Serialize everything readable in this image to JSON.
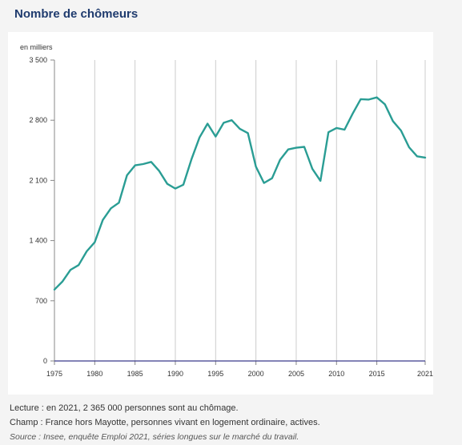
{
  "title": "Nombre de chômeurs",
  "notes": {
    "lecture": "Lecture : en 2021, 2 365 000 personnes sont au chômage.",
    "champ": "Champ : France hors Mayotte, personnes vivant en logement ordinaire, actives.",
    "source": "Source : Insee, enquête Emploi 2021, séries longues sur le marché du travail."
  },
  "colors": {
    "line": "#2a9d94",
    "grid": "#cccccc",
    "baseline": "#3a3a8c",
    "title": "#1f3b6e"
  },
  "chart_data": {
    "type": "line",
    "title": "",
    "xlabel": "",
    "ylabel": "en milliers",
    "xlim": [
      1975,
      2021
    ],
    "ylim": [
      0,
      3500
    ],
    "yticks": [
      0,
      700,
      1400,
      2100,
      2800,
      3500
    ],
    "ytick_labels": [
      "0",
      "700",
      "1 400",
      "2 100",
      "2 800",
      "3 500"
    ],
    "xticks": [
      1975,
      1980,
      1985,
      1990,
      1995,
      2000,
      2005,
      2010,
      2015,
      2021
    ],
    "xtick_labels": [
      "1975",
      "1980",
      "1985",
      "1990",
      "1995",
      "2000",
      "2005",
      "2010",
      "2015",
      "2021"
    ],
    "grid": "vertical",
    "x": [
      1975,
      1976,
      1977,
      1978,
      1979,
      1980,
      1981,
      1982,
      1983,
      1984,
      1985,
      1986,
      1987,
      1988,
      1989,
      1990,
      1991,
      1992,
      1993,
      1994,
      1995,
      1996,
      1997,
      1998,
      1999,
      2000,
      2001,
      2002,
      2003,
      2004,
      2005,
      2006,
      2007,
      2008,
      2009,
      2010,
      2011,
      2012,
      2013,
      2014,
      2015,
      2016,
      2017,
      2018,
      2019,
      2020,
      2021
    ],
    "series": [
      {
        "values": [
          830,
          925,
          1060,
          1115,
          1275,
          1380,
          1640,
          1775,
          1840,
          2160,
          2275,
          2290,
          2315,
          2210,
          2060,
          2005,
          2050,
          2345,
          2600,
          2760,
          2610,
          2770,
          2800,
          2700,
          2650,
          2260,
          2070,
          2125,
          2340,
          2460,
          2480,
          2490,
          2235,
          2095,
          2660,
          2710,
          2690,
          2875,
          3045,
          3040,
          3065,
          2985,
          2790,
          2680,
          2485,
          2380,
          2365
        ]
      }
    ]
  }
}
